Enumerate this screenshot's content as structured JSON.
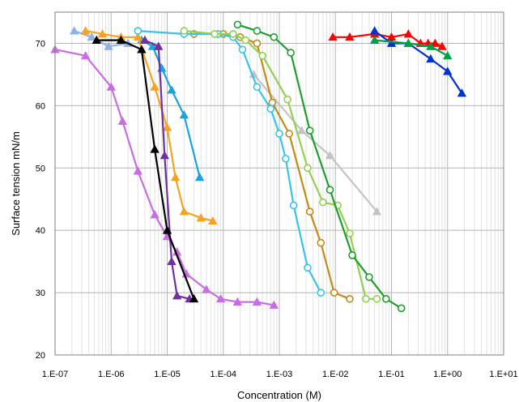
{
  "chart_data": {
    "type": "scatter",
    "title": "",
    "xlabel": "Concentration (M)",
    "ylabel": "Surface tension mN/m",
    "xscale": "log",
    "xlim": [
      1e-07,
      10
    ],
    "ylim": [
      20,
      75
    ],
    "grid": true,
    "legend": "none",
    "x_tick_labels": [
      "1.E-07",
      "1.E-06",
      "1.E-05",
      "1.E-04",
      "1.E-03",
      "1.E-02",
      "1.E-01",
      "1.E+00",
      "1.E+01"
    ],
    "y_tick_labels": [
      "20",
      "30",
      "40",
      "50",
      "60",
      "70"
    ],
    "series": [
      {
        "color": "#8db3e2",
        "marker": "triangle",
        "x": [
          2.2e-07,
          4.5e-07,
          9e-07,
          2e-06
        ],
        "y": [
          72.0,
          71.0,
          69.5,
          70.0
        ]
      },
      {
        "color": "#1aa3e0",
        "marker": "triangle",
        "x": [
          3.5e-06,
          5.5e-06,
          8e-06,
          1.2e-05,
          2e-05,
          3.8e-05
        ],
        "y": [
          70.5,
          69.5,
          66.0,
          62.5,
          58.5,
          48.5
        ]
      },
      {
        "color": "#f5a321",
        "marker": "triangle",
        "x": [
          3.5e-07,
          7e-07,
          1.5e-06,
          3e-06,
          6e-06,
          1e-05,
          1.4e-05,
          2e-05,
          4e-05,
          6.5e-05
        ],
        "y": [
          72.0,
          71.5,
          71.0,
          71.0,
          63.0,
          56.5,
          48.5,
          43.0,
          42.0,
          41.5
        ]
      },
      {
        "color": "#c86ee0",
        "marker": "triangle",
        "x": [
          1e-07,
          3.5e-07,
          1e-06,
          1.6e-06,
          3e-06,
          6e-06,
          1e-05,
          1.5e-05,
          2.2e-05,
          5e-05,
          9e-05,
          0.00018,
          0.0004,
          0.0008
        ],
        "y": [
          69.0,
          68.0,
          63.0,
          57.5,
          49.5,
          42.5,
          39.0,
          36.5,
          33.0,
          30.5,
          29.0,
          28.5,
          28.5,
          28.0
        ]
      },
      {
        "color": "#7030a0",
        "marker": "triangle",
        "x": [
          4e-06,
          7e-06,
          9e-06,
          1.2e-05,
          1.5e-05,
          2.5e-05
        ],
        "y": [
          70.5,
          69.5,
          52.0,
          35.0,
          29.5,
          29.0
        ]
      },
      {
        "color": "#000000",
        "marker": "triangle",
        "x": [
          5.5e-07,
          1.5e-06,
          3.5e-06,
          6e-06,
          1e-05,
          3e-05
        ],
        "y": [
          70.5,
          70.5,
          69.0,
          53.0,
          40.0,
          29.0
        ]
      },
      {
        "color": "#c4c4c4",
        "marker": "triangle",
        "x": [
          0.00035,
          0.0025,
          0.008,
          0.055
        ],
        "y": [
          65.0,
          56.0,
          52.0,
          43.0
        ]
      },
      {
        "color": "#c48a17",
        "marker": "circle",
        "x": [
          3e-05,
          0.0001,
          0.0002,
          0.0004,
          0.00075,
          0.0015,
          0.0035,
          0.0055,
          0.0095,
          0.018
        ],
        "y": [
          71.5,
          71.5,
          71.0,
          70.0,
          60.5,
          55.5,
          43.0,
          38.0,
          30.0,
          29.0
        ]
      },
      {
        "color": "#38c4e8",
        "marker": "circle",
        "x": [
          3e-06,
          2e-05,
          8e-05,
          0.00015,
          0.00022,
          0.0004,
          0.0007,
          0.001,
          0.0013,
          0.0018,
          0.0032,
          0.0055
        ],
        "y": [
          72.0,
          71.5,
          71.5,
          71.0,
          69.0,
          63.0,
          59.5,
          55.5,
          51.5,
          44.0,
          34.0,
          30.0
        ]
      },
      {
        "color": "#92d050",
        "marker": "circle",
        "x": [
          2e-05,
          7e-05,
          0.00015,
          0.00025,
          0.0005,
          0.0014,
          0.0032,
          0.006,
          0.011,
          0.018,
          0.035,
          0.055
        ],
        "y": [
          72.0,
          71.5,
          71.5,
          70.5,
          68.0,
          61.0,
          50.0,
          44.5,
          44.0,
          39.5,
          29.0,
          29.0
        ]
      },
      {
        "color": "#1e9e2e",
        "marker": "circle",
        "x": [
          0.00018,
          0.0004,
          0.0008,
          0.0016,
          0.0035,
          0.008,
          0.02,
          0.04,
          0.08,
          0.15
        ],
        "y": [
          73.0,
          72.0,
          71.0,
          68.5,
          56.0,
          46.5,
          36.0,
          32.5,
          29.0,
          27.5
        ]
      },
      {
        "color": "#ff0000",
        "marker": "triangle",
        "x": [
          0.009,
          0.018,
          0.05,
          0.1,
          0.2,
          0.33,
          0.45,
          0.6,
          0.8
        ],
        "y": [
          71.0,
          71.0,
          71.5,
          71.0,
          71.5,
          70.0,
          70.0,
          70.0,
          69.5
        ]
      },
      {
        "color": "#0033cc",
        "marker": "triangle",
        "x": [
          0.05,
          0.1,
          0.2,
          0.5,
          1.0,
          1.8
        ],
        "y": [
          72.0,
          70.0,
          70.0,
          67.5,
          65.5,
          62.0
        ]
      },
      {
        "color": "#00a046",
        "marker": "triangle",
        "x": [
          0.05,
          0.2,
          0.5,
          1.0
        ],
        "y": [
          70.5,
          70.0,
          69.5,
          68.0
        ]
      }
    ]
  }
}
